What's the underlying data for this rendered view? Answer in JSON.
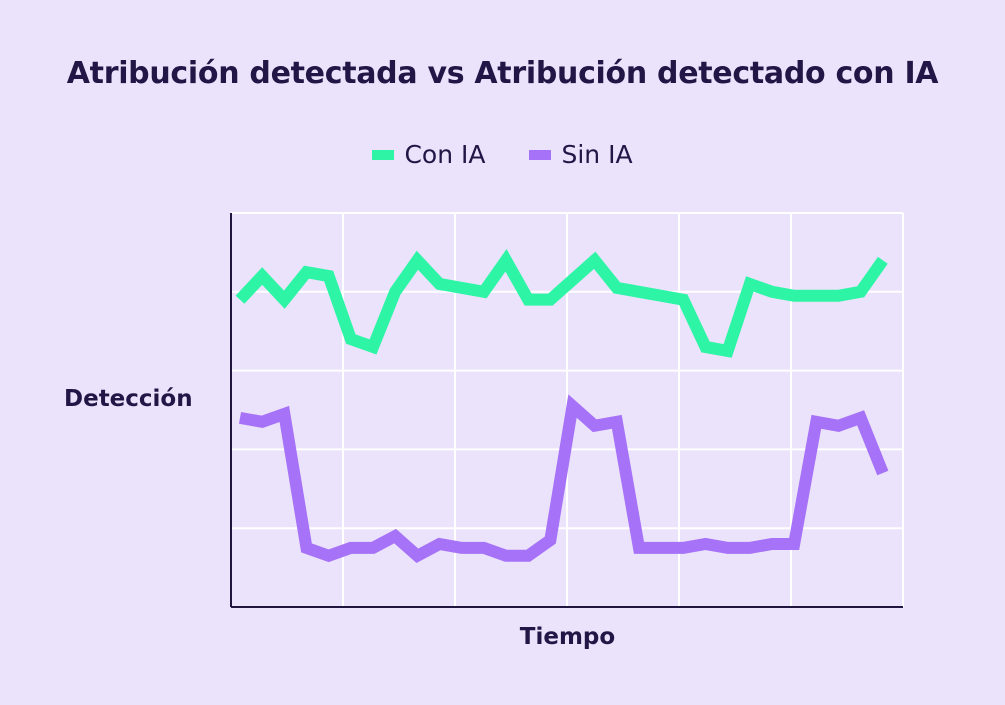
{
  "chart_data": {
    "type": "line",
    "title": "Atribución detectada vs Atribución detectado con IA",
    "xlabel": "Tiempo",
    "ylabel": "Detección",
    "x_tick_labels_shown": false,
    "y_tick_labels_shown": false,
    "grid": true,
    "legend_position": "top-center",
    "x": [
      0,
      1,
      2,
      3,
      4,
      5,
      6,
      7,
      8,
      9,
      10,
      11,
      12,
      13,
      14,
      15,
      16,
      17,
      18,
      19,
      20,
      21,
      22,
      23,
      24,
      25,
      26,
      27,
      28,
      29
    ],
    "xlim": [
      0,
      30
    ],
    "ylim": [
      0,
      10
    ],
    "series": [
      {
        "name": "Con IA",
        "color": "#2ef5a6",
        "values": [
          7.8,
          8.4,
          7.8,
          8.5,
          8.4,
          6.8,
          6.6,
          8.0,
          8.8,
          8.2,
          8.1,
          8.0,
          8.8,
          7.8,
          7.8,
          8.3,
          8.8,
          8.1,
          8.0,
          7.9,
          7.8,
          6.6,
          6.5,
          8.2,
          8.0,
          7.9,
          7.9,
          7.9,
          8.0,
          8.8
        ]
      },
      {
        "name": "Sin IA",
        "color": "#a672f7",
        "values": [
          4.8,
          4.7,
          4.9,
          1.5,
          1.3,
          1.5,
          1.5,
          1.8,
          1.3,
          1.6,
          1.5,
          1.5,
          1.3,
          1.3,
          1.7,
          5.1,
          4.6,
          4.7,
          1.5,
          1.5,
          1.5,
          1.6,
          1.5,
          1.5,
          1.6,
          1.6,
          4.7,
          4.6,
          4.8,
          3.4
        ]
      }
    ]
  }
}
